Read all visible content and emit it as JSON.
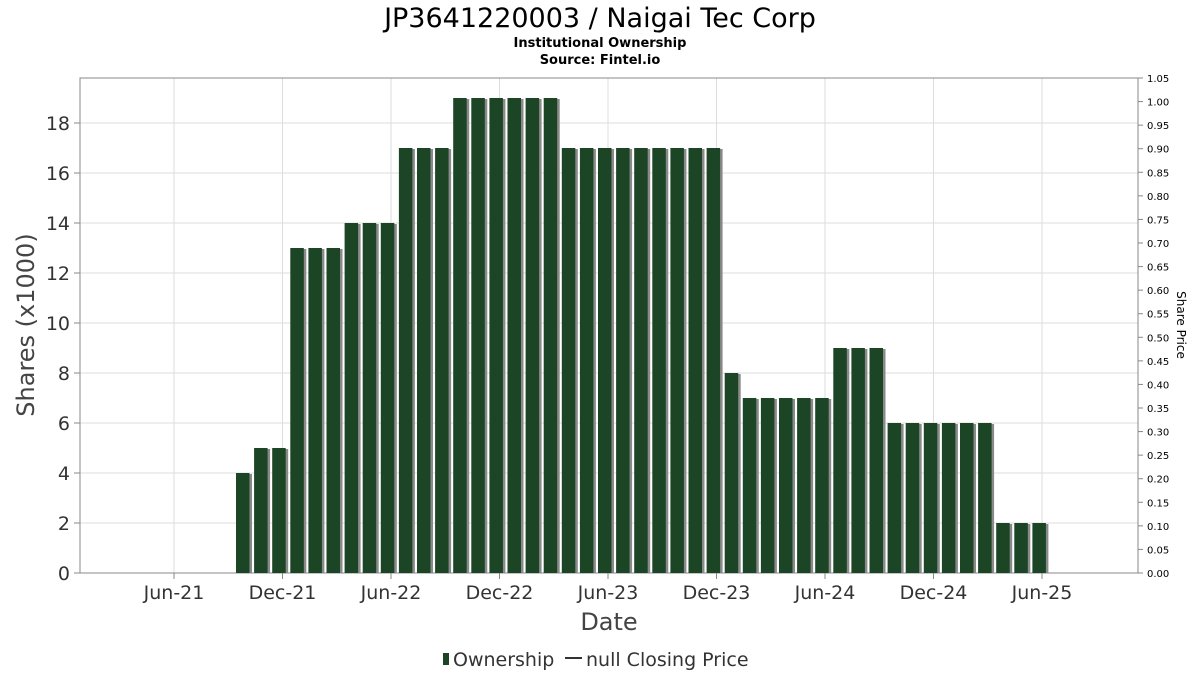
{
  "title": "JP3641220003 / Naigai Tec Corp",
  "subtitle": "Institutional Ownership",
  "source": "Source: Fintel.io",
  "colors": {
    "bar": "#1c4526",
    "bar_shadow": "#8a8a8a",
    "grid": "#dddddd",
    "frame": "#888888"
  },
  "legend": {
    "ownership": "Ownership",
    "price": "null Closing Price"
  },
  "chart_data": {
    "type": "bar",
    "title": "JP3641220003 / Naigai Tec Corp",
    "subtitle": "Institutional Ownership",
    "xlabel": "Date",
    "ylabel": "Shares (x1000)",
    "y2label": "Share Price",
    "x_tick_labels": [
      "Jun-21",
      "Dec-21",
      "Jun-22",
      "Dec-22",
      "Jun-23",
      "Dec-23",
      "Jun-24",
      "Dec-24",
      "Jun-25"
    ],
    "ylim": [
      0,
      19.8
    ],
    "y_ticks": [
      0,
      2,
      4,
      6,
      8,
      10,
      12,
      14,
      16,
      18
    ],
    "y2lim": [
      0,
      1.05
    ],
    "y2_ticks": [
      "0.00",
      "0.05",
      "0.10",
      "0.15",
      "0.20",
      "0.25",
      "0.30",
      "0.35",
      "0.40",
      "0.45",
      "0.50",
      "0.55",
      "0.60",
      "0.65",
      "0.70",
      "0.75",
      "0.80",
      "0.85",
      "0.90",
      "0.95",
      "1.00",
      "1.05"
    ],
    "grid": true,
    "legend_position": "bottom",
    "series": [
      {
        "name": "Ownership",
        "values": [
          4,
          5,
          5,
          13,
          13,
          13,
          14,
          14,
          14,
          17,
          17,
          17,
          19,
          19,
          19,
          19,
          19,
          19,
          17,
          17,
          17,
          17,
          17,
          17,
          17,
          17,
          17,
          8,
          7,
          7,
          7,
          7,
          7,
          9,
          9,
          9,
          6,
          6,
          6,
          6,
          6,
          6,
          2,
          2,
          2
        ]
      }
    ]
  }
}
